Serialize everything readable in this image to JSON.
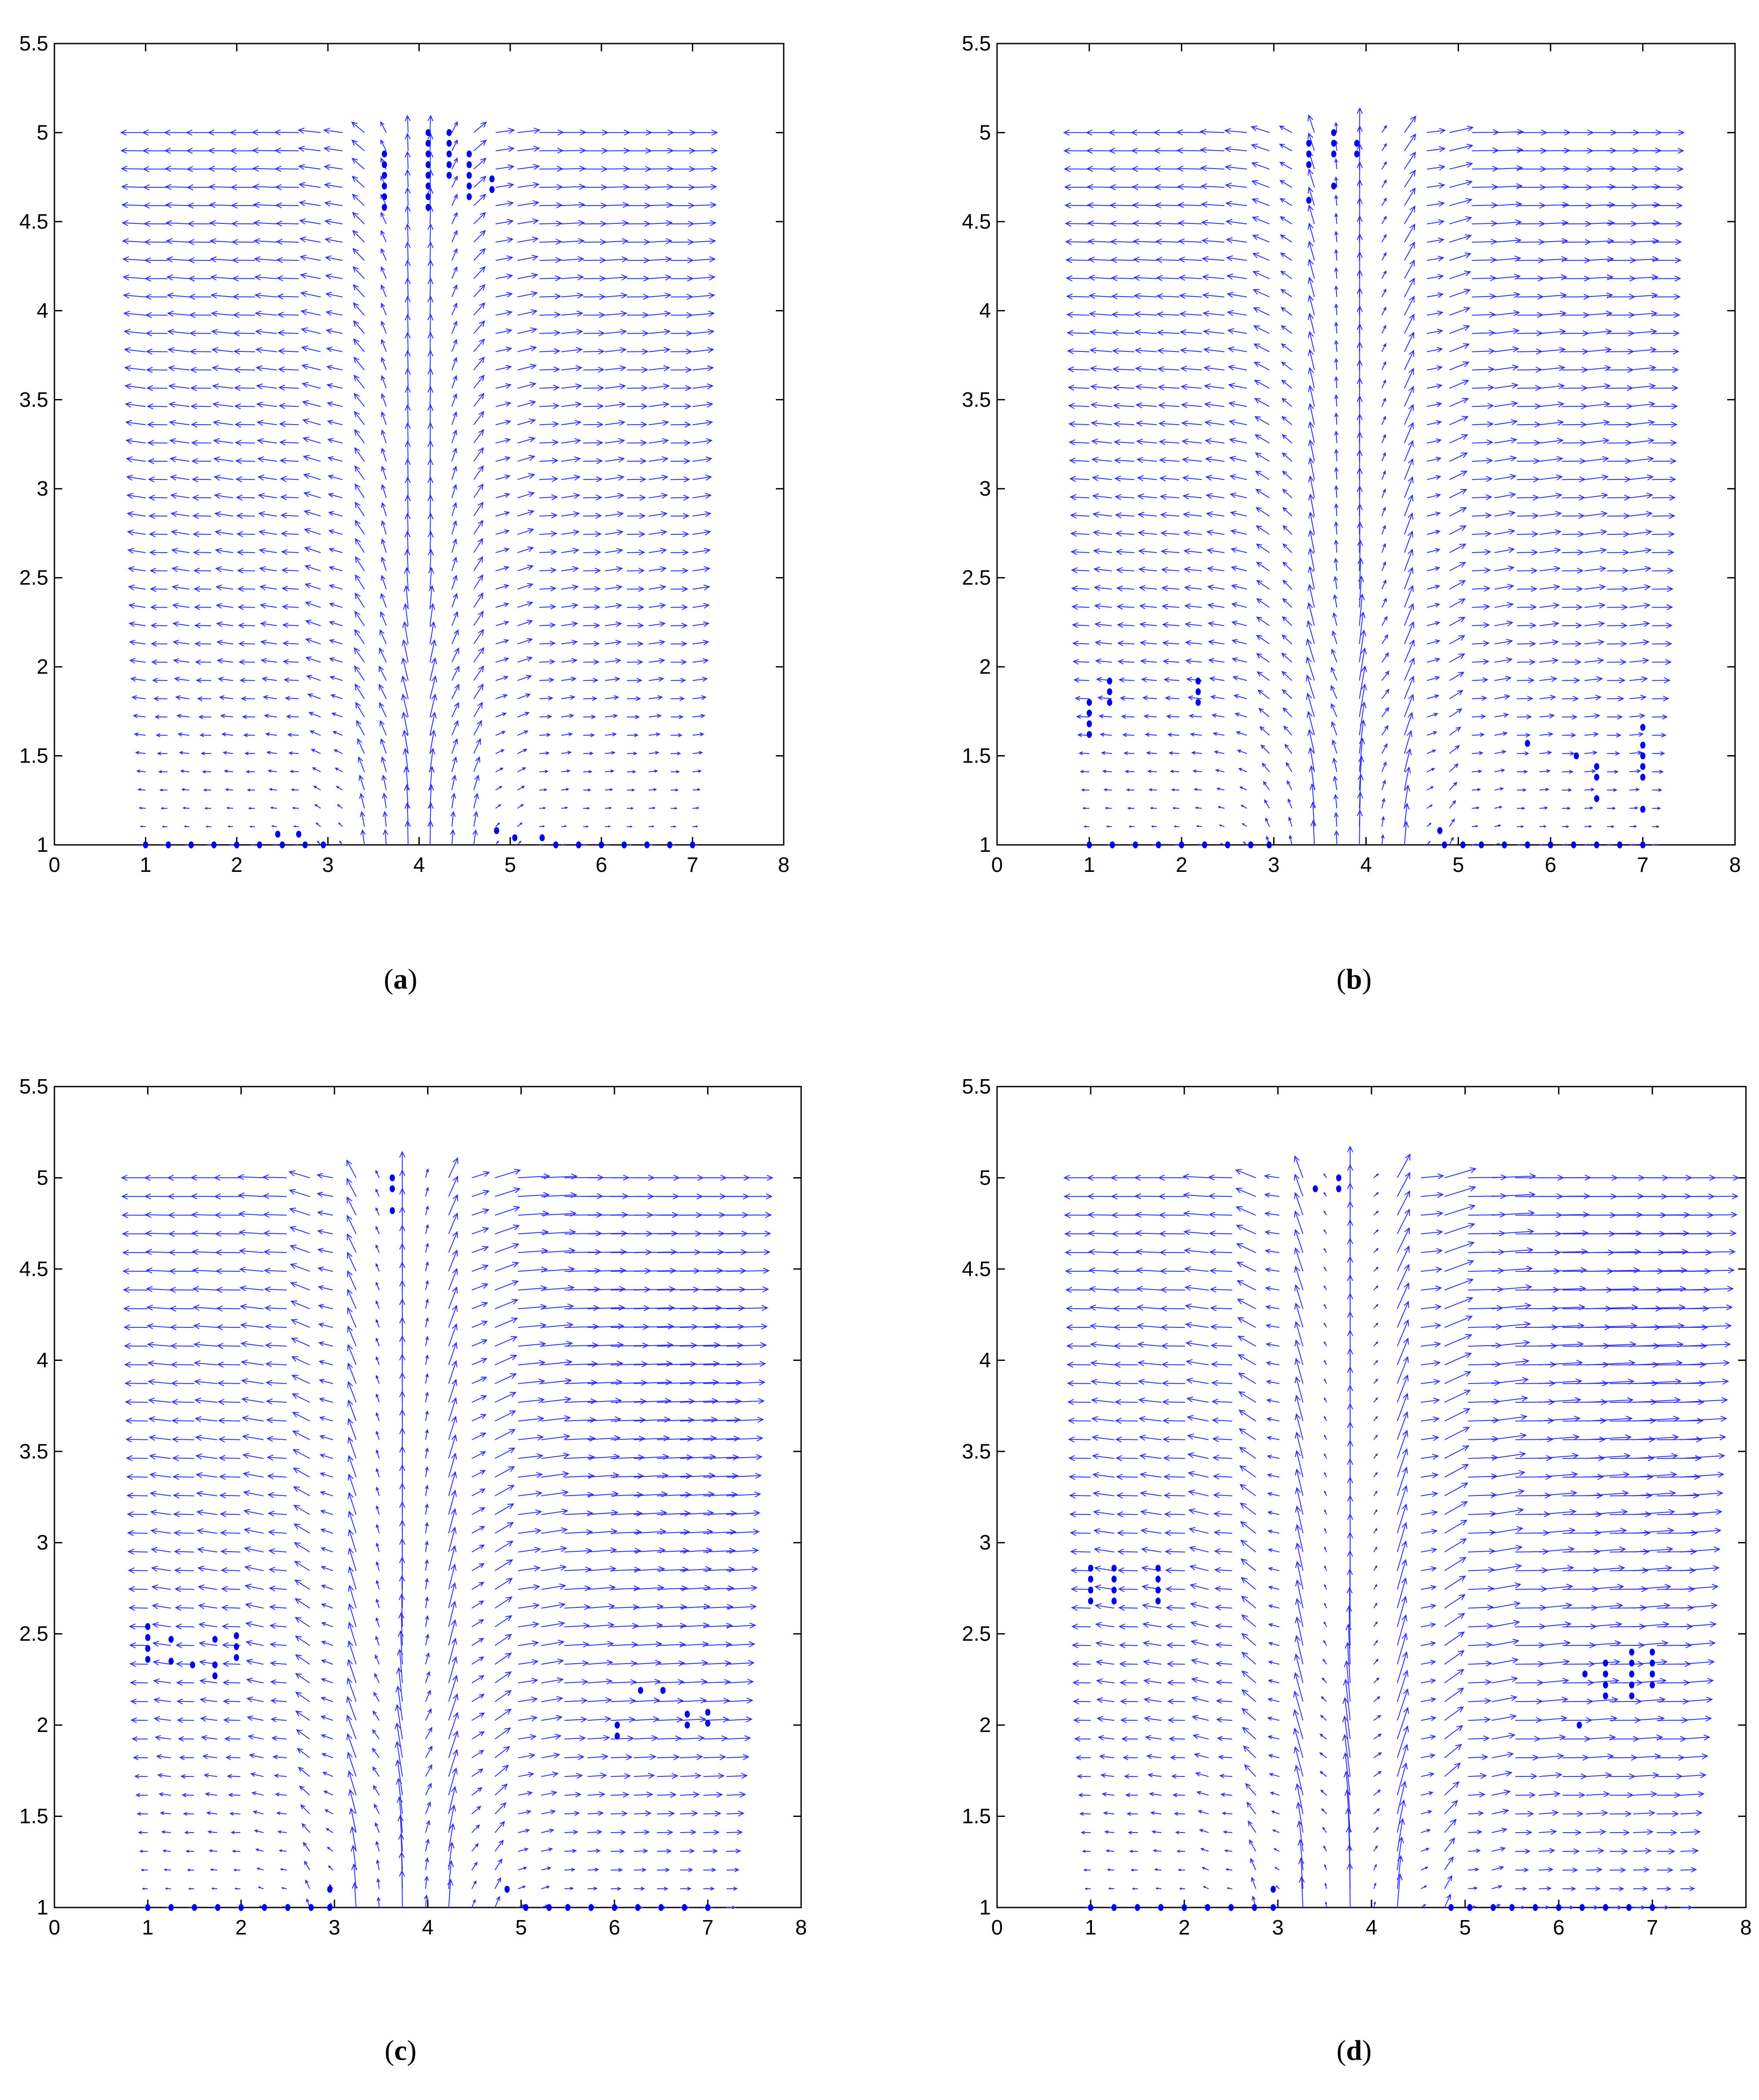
{
  "figure": {
    "description_visible": false
  },
  "colors": {
    "arrow": "#2b2bff",
    "marker": "#0000ee",
    "axis": "#000000"
  },
  "chart_data": [
    {
      "type": "quiver",
      "panel": "a",
      "caption_letter": "a",
      "xlim": [
        0,
        8
      ],
      "ylim": [
        1,
        5.5
      ],
      "xticks": [
        "0",
        "1",
        "2",
        "3",
        "4",
        "5",
        "6",
        "7",
        "8"
      ],
      "yticks": [
        "1",
        "1.5",
        "2",
        "2.5",
        "3",
        "3.5",
        "4",
        "4.5",
        "5",
        "5.5"
      ],
      "grid_x": [
        1,
        7
      ],
      "grid_y": [
        1,
        5
      ],
      "flow": {
        "center": 4.0,
        "jet_left": 3.2,
        "jet_right": 4.7,
        "shear_strength": 0.0
      },
      "markers": [
        {
          "x": 1.0,
          "y": 1.0
        },
        {
          "x": 1.25,
          "y": 1.0
        },
        {
          "x": 1.5,
          "y": 1.0
        },
        {
          "x": 1.75,
          "y": 1.0
        },
        {
          "x": 2.0,
          "y": 1.0
        },
        {
          "x": 2.25,
          "y": 1.0
        },
        {
          "x": 2.5,
          "y": 1.0
        },
        {
          "x": 2.75,
          "y": 1.0
        },
        {
          "x": 2.95,
          "y": 1.0
        },
        {
          "x": 2.45,
          "y": 1.06
        },
        {
          "x": 2.68,
          "y": 1.06
        },
        {
          "x": 4.85,
          "y": 1.08
        },
        {
          "x": 5.05,
          "y": 1.04
        },
        {
          "x": 5.35,
          "y": 1.04
        },
        {
          "x": 5.5,
          "y": 1.0
        },
        {
          "x": 5.75,
          "y": 1.0
        },
        {
          "x": 6.0,
          "y": 1.0
        },
        {
          "x": 6.25,
          "y": 1.0
        },
        {
          "x": 6.5,
          "y": 1.0
        },
        {
          "x": 6.75,
          "y": 1.0
        },
        {
          "x": 7.0,
          "y": 1.0
        },
        {
          "x": 3.62,
          "y": 4.88
        },
        {
          "x": 3.62,
          "y": 4.82
        },
        {
          "x": 3.62,
          "y": 4.76
        },
        {
          "x": 3.62,
          "y": 4.7
        },
        {
          "x": 3.62,
          "y": 4.64
        },
        {
          "x": 3.62,
          "y": 4.58
        },
        {
          "x": 4.1,
          "y": 5.0
        },
        {
          "x": 4.1,
          "y": 4.94
        },
        {
          "x": 4.1,
          "y": 4.88
        },
        {
          "x": 4.1,
          "y": 4.82
        },
        {
          "x": 4.1,
          "y": 4.76
        },
        {
          "x": 4.1,
          "y": 4.7
        },
        {
          "x": 4.1,
          "y": 4.64
        },
        {
          "x": 4.1,
          "y": 4.58
        },
        {
          "x": 4.33,
          "y": 5.0
        },
        {
          "x": 4.33,
          "y": 4.94
        },
        {
          "x": 4.33,
          "y": 4.88
        },
        {
          "x": 4.33,
          "y": 4.82
        },
        {
          "x": 4.33,
          "y": 4.76
        },
        {
          "x": 4.55,
          "y": 4.88
        },
        {
          "x": 4.55,
          "y": 4.82
        },
        {
          "x": 4.55,
          "y": 4.76
        },
        {
          "x": 4.55,
          "y": 4.7
        },
        {
          "x": 4.55,
          "y": 4.64
        },
        {
          "x": 4.8,
          "y": 4.74
        },
        {
          "x": 4.8,
          "y": 4.68
        }
      ]
    },
    {
      "type": "quiver",
      "panel": "b",
      "caption_letter": "b",
      "xlim": [
        0,
        8
      ],
      "ylim": [
        1,
        5.5
      ],
      "xticks": [
        "0",
        "1",
        "2",
        "3",
        "4",
        "5",
        "6",
        "7",
        "8"
      ],
      "yticks": [
        "1",
        "1.5",
        "2",
        "2.5",
        "3",
        "3.5",
        "4",
        "4.5",
        "5",
        "5.5"
      ],
      "grid_x": [
        1,
        7.1
      ],
      "grid_y": [
        1,
        5
      ],
      "flow": {
        "center": 3.85,
        "jet_left": 3.0,
        "jet_right": 4.7,
        "shear_strength": 0.15
      },
      "markers": [
        {
          "x": 1.0,
          "y": 1.0
        },
        {
          "x": 1.25,
          "y": 1.0
        },
        {
          "x": 1.5,
          "y": 1.0
        },
        {
          "x": 1.75,
          "y": 1.0
        },
        {
          "x": 2.0,
          "y": 1.0
        },
        {
          "x": 2.25,
          "y": 1.0
        },
        {
          "x": 2.5,
          "y": 1.0
        },
        {
          "x": 2.75,
          "y": 1.0
        },
        {
          "x": 2.95,
          "y": 1.0
        },
        {
          "x": 4.85,
          "y": 1.0
        },
        {
          "x": 5.05,
          "y": 1.0
        },
        {
          "x": 5.25,
          "y": 1.0
        },
        {
          "x": 5.5,
          "y": 1.0
        },
        {
          "x": 5.75,
          "y": 1.0
        },
        {
          "x": 6.0,
          "y": 1.0
        },
        {
          "x": 6.25,
          "y": 1.0
        },
        {
          "x": 6.5,
          "y": 1.0
        },
        {
          "x": 6.75,
          "y": 1.0
        },
        {
          "x": 7.0,
          "y": 1.0
        },
        {
          "x": 4.8,
          "y": 1.08
        },
        {
          "x": 1.0,
          "y": 1.8
        },
        {
          "x": 1.0,
          "y": 1.74
        },
        {
          "x": 1.0,
          "y": 1.68
        },
        {
          "x": 1.0,
          "y": 1.62
        },
        {
          "x": 1.22,
          "y": 1.92
        },
        {
          "x": 1.22,
          "y": 1.86
        },
        {
          "x": 1.22,
          "y": 1.8
        },
        {
          "x": 2.18,
          "y": 1.92
        },
        {
          "x": 2.18,
          "y": 1.86
        },
        {
          "x": 2.18,
          "y": 1.8
        },
        {
          "x": 3.38,
          "y": 4.94
        },
        {
          "x": 3.38,
          "y": 4.88
        },
        {
          "x": 3.38,
          "y": 4.82
        },
        {
          "x": 3.38,
          "y": 4.62
        },
        {
          "x": 3.65,
          "y": 5.0
        },
        {
          "x": 3.65,
          "y": 4.94
        },
        {
          "x": 3.65,
          "y": 4.88
        },
        {
          "x": 3.65,
          "y": 4.7
        },
        {
          "x": 3.9,
          "y": 4.94
        },
        {
          "x": 3.9,
          "y": 4.88
        },
        {
          "x": 5.75,
          "y": 1.57
        },
        {
          "x": 6.28,
          "y": 1.5
        },
        {
          "x": 6.5,
          "y": 1.44
        },
        {
          "x": 6.5,
          "y": 1.38
        },
        {
          "x": 6.5,
          "y": 1.26
        },
        {
          "x": 7.0,
          "y": 1.66
        },
        {
          "x": 7.0,
          "y": 1.56
        },
        {
          "x": 7.0,
          "y": 1.5
        },
        {
          "x": 7.0,
          "y": 1.44
        },
        {
          "x": 7.0,
          "y": 1.38
        },
        {
          "x": 7.0,
          "y": 1.2
        }
      ]
    },
    {
      "type": "quiver",
      "panel": "c",
      "caption_letter": "c",
      "xlim": [
        0,
        8
      ],
      "ylim": [
        1,
        5.5
      ],
      "xticks": [
        "0",
        "1",
        "2",
        "3",
        "4",
        "5",
        "6",
        "7",
        "8"
      ],
      "yticks": [
        "1",
        "1.5",
        "2",
        "2.5",
        "3",
        "3.5",
        "4",
        "4.5",
        "5",
        "5.5"
      ],
      "grid_x": [
        1,
        7.2
      ],
      "grid_y": [
        1,
        5
      ],
      "flow": {
        "center": 3.8,
        "jet_left": 2.95,
        "jet_right": 4.75,
        "shear_strength": 0.45
      },
      "markers": [
        {
          "x": 1.0,
          "y": 1.0
        },
        {
          "x": 1.25,
          "y": 1.0
        },
        {
          "x": 1.5,
          "y": 1.0
        },
        {
          "x": 1.75,
          "y": 1.0
        },
        {
          "x": 2.0,
          "y": 1.0
        },
        {
          "x": 2.25,
          "y": 1.0
        },
        {
          "x": 2.5,
          "y": 1.0
        },
        {
          "x": 2.75,
          "y": 1.0
        },
        {
          "x": 2.95,
          "y": 1.0
        },
        {
          "x": 2.95,
          "y": 1.1
        },
        {
          "x": 4.85,
          "y": 1.1
        },
        {
          "x": 5.05,
          "y": 1.0
        },
        {
          "x": 5.3,
          "y": 1.0
        },
        {
          "x": 5.5,
          "y": 1.0
        },
        {
          "x": 5.75,
          "y": 1.0
        },
        {
          "x": 6.0,
          "y": 1.0
        },
        {
          "x": 6.25,
          "y": 1.0
        },
        {
          "x": 6.5,
          "y": 1.0
        },
        {
          "x": 6.75,
          "y": 1.0
        },
        {
          "x": 7.0,
          "y": 1.0
        },
        {
          "x": 1.0,
          "y": 2.54
        },
        {
          "x": 1.0,
          "y": 2.48
        },
        {
          "x": 1.0,
          "y": 2.42
        },
        {
          "x": 1.0,
          "y": 2.36
        },
        {
          "x": 1.25,
          "y": 2.47
        },
        {
          "x": 1.25,
          "y": 2.35
        },
        {
          "x": 1.48,
          "y": 2.33
        },
        {
          "x": 1.72,
          "y": 2.47
        },
        {
          "x": 1.72,
          "y": 2.33
        },
        {
          "x": 1.72,
          "y": 2.27
        },
        {
          "x": 1.95,
          "y": 2.49
        },
        {
          "x": 1.95,
          "y": 2.43
        },
        {
          "x": 1.95,
          "y": 2.37
        },
        {
          "x": 3.62,
          "y": 5.0
        },
        {
          "x": 3.62,
          "y": 4.94
        },
        {
          "x": 3.62,
          "y": 4.82
        },
        {
          "x": 6.03,
          "y": 2.0
        },
        {
          "x": 6.03,
          "y": 1.94
        },
        {
          "x": 6.28,
          "y": 2.19
        },
        {
          "x": 6.52,
          "y": 2.19
        },
        {
          "x": 6.78,
          "y": 2.06
        },
        {
          "x": 6.78,
          "y": 2.0
        },
        {
          "x": 7.0,
          "y": 2.07
        },
        {
          "x": 7.0,
          "y": 2.01
        }
      ]
    },
    {
      "type": "quiver",
      "panel": "d",
      "caption_letter": "d",
      "xlim": [
        0,
        8
      ],
      "ylim": [
        1,
        5.5
      ],
      "xticks": [
        "0",
        "1",
        "2",
        "3",
        "4",
        "5",
        "6",
        "7",
        "8"
      ],
      "yticks": [
        "1",
        "1.5",
        "2",
        "2.5",
        "3",
        "3.5",
        "4",
        "4.5",
        "5",
        "5.5"
      ],
      "grid_x": [
        1,
        7.3
      ],
      "grid_y": [
        1,
        5
      ],
      "flow": {
        "center": 3.8,
        "jet_left": 2.95,
        "jet_right": 4.8,
        "shear_strength": 0.7
      },
      "markers": [
        {
          "x": 1.0,
          "y": 1.0
        },
        {
          "x": 1.25,
          "y": 1.0
        },
        {
          "x": 1.5,
          "y": 1.0
        },
        {
          "x": 1.75,
          "y": 1.0
        },
        {
          "x": 2.0,
          "y": 1.0
        },
        {
          "x": 2.25,
          "y": 1.0
        },
        {
          "x": 2.5,
          "y": 1.0
        },
        {
          "x": 2.75,
          "y": 1.0
        },
        {
          "x": 2.95,
          "y": 1.0
        },
        {
          "x": 2.95,
          "y": 1.1
        },
        {
          "x": 4.85,
          "y": 1.0
        },
        {
          "x": 5.05,
          "y": 1.0
        },
        {
          "x": 5.3,
          "y": 1.0
        },
        {
          "x": 5.5,
          "y": 1.0
        },
        {
          "x": 5.75,
          "y": 1.0
        },
        {
          "x": 6.0,
          "y": 1.0
        },
        {
          "x": 6.25,
          "y": 1.0
        },
        {
          "x": 6.5,
          "y": 1.0
        },
        {
          "x": 6.75,
          "y": 1.0
        },
        {
          "x": 7.0,
          "y": 1.0
        },
        {
          "x": 1.0,
          "y": 2.86
        },
        {
          "x": 1.0,
          "y": 2.8
        },
        {
          "x": 1.0,
          "y": 2.74
        },
        {
          "x": 1.0,
          "y": 2.68
        },
        {
          "x": 1.25,
          "y": 2.86
        },
        {
          "x": 1.25,
          "y": 2.8
        },
        {
          "x": 1.25,
          "y": 2.74
        },
        {
          "x": 1.25,
          "y": 2.68
        },
        {
          "x": 1.72,
          "y": 2.86
        },
        {
          "x": 1.72,
          "y": 2.8
        },
        {
          "x": 1.72,
          "y": 2.74
        },
        {
          "x": 1.72,
          "y": 2.68
        },
        {
          "x": 3.4,
          "y": 4.94
        },
        {
          "x": 3.65,
          "y": 5.0
        },
        {
          "x": 3.65,
          "y": 4.94
        },
        {
          "x": 6.22,
          "y": 2.0
        },
        {
          "x": 6.28,
          "y": 2.28
        },
        {
          "x": 6.5,
          "y": 2.34
        },
        {
          "x": 6.5,
          "y": 2.28
        },
        {
          "x": 6.5,
          "y": 2.22
        },
        {
          "x": 6.5,
          "y": 2.16
        },
        {
          "x": 6.78,
          "y": 2.34
        },
        {
          "x": 6.78,
          "y": 2.28
        },
        {
          "x": 6.78,
          "y": 2.22
        },
        {
          "x": 6.78,
          "y": 2.4
        },
        {
          "x": 6.78,
          "y": 2.16
        },
        {
          "x": 7.0,
          "y": 2.4
        },
        {
          "x": 7.0,
          "y": 2.34
        },
        {
          "x": 7.0,
          "y": 2.28
        },
        {
          "x": 7.0,
          "y": 2.22
        }
      ]
    }
  ]
}
